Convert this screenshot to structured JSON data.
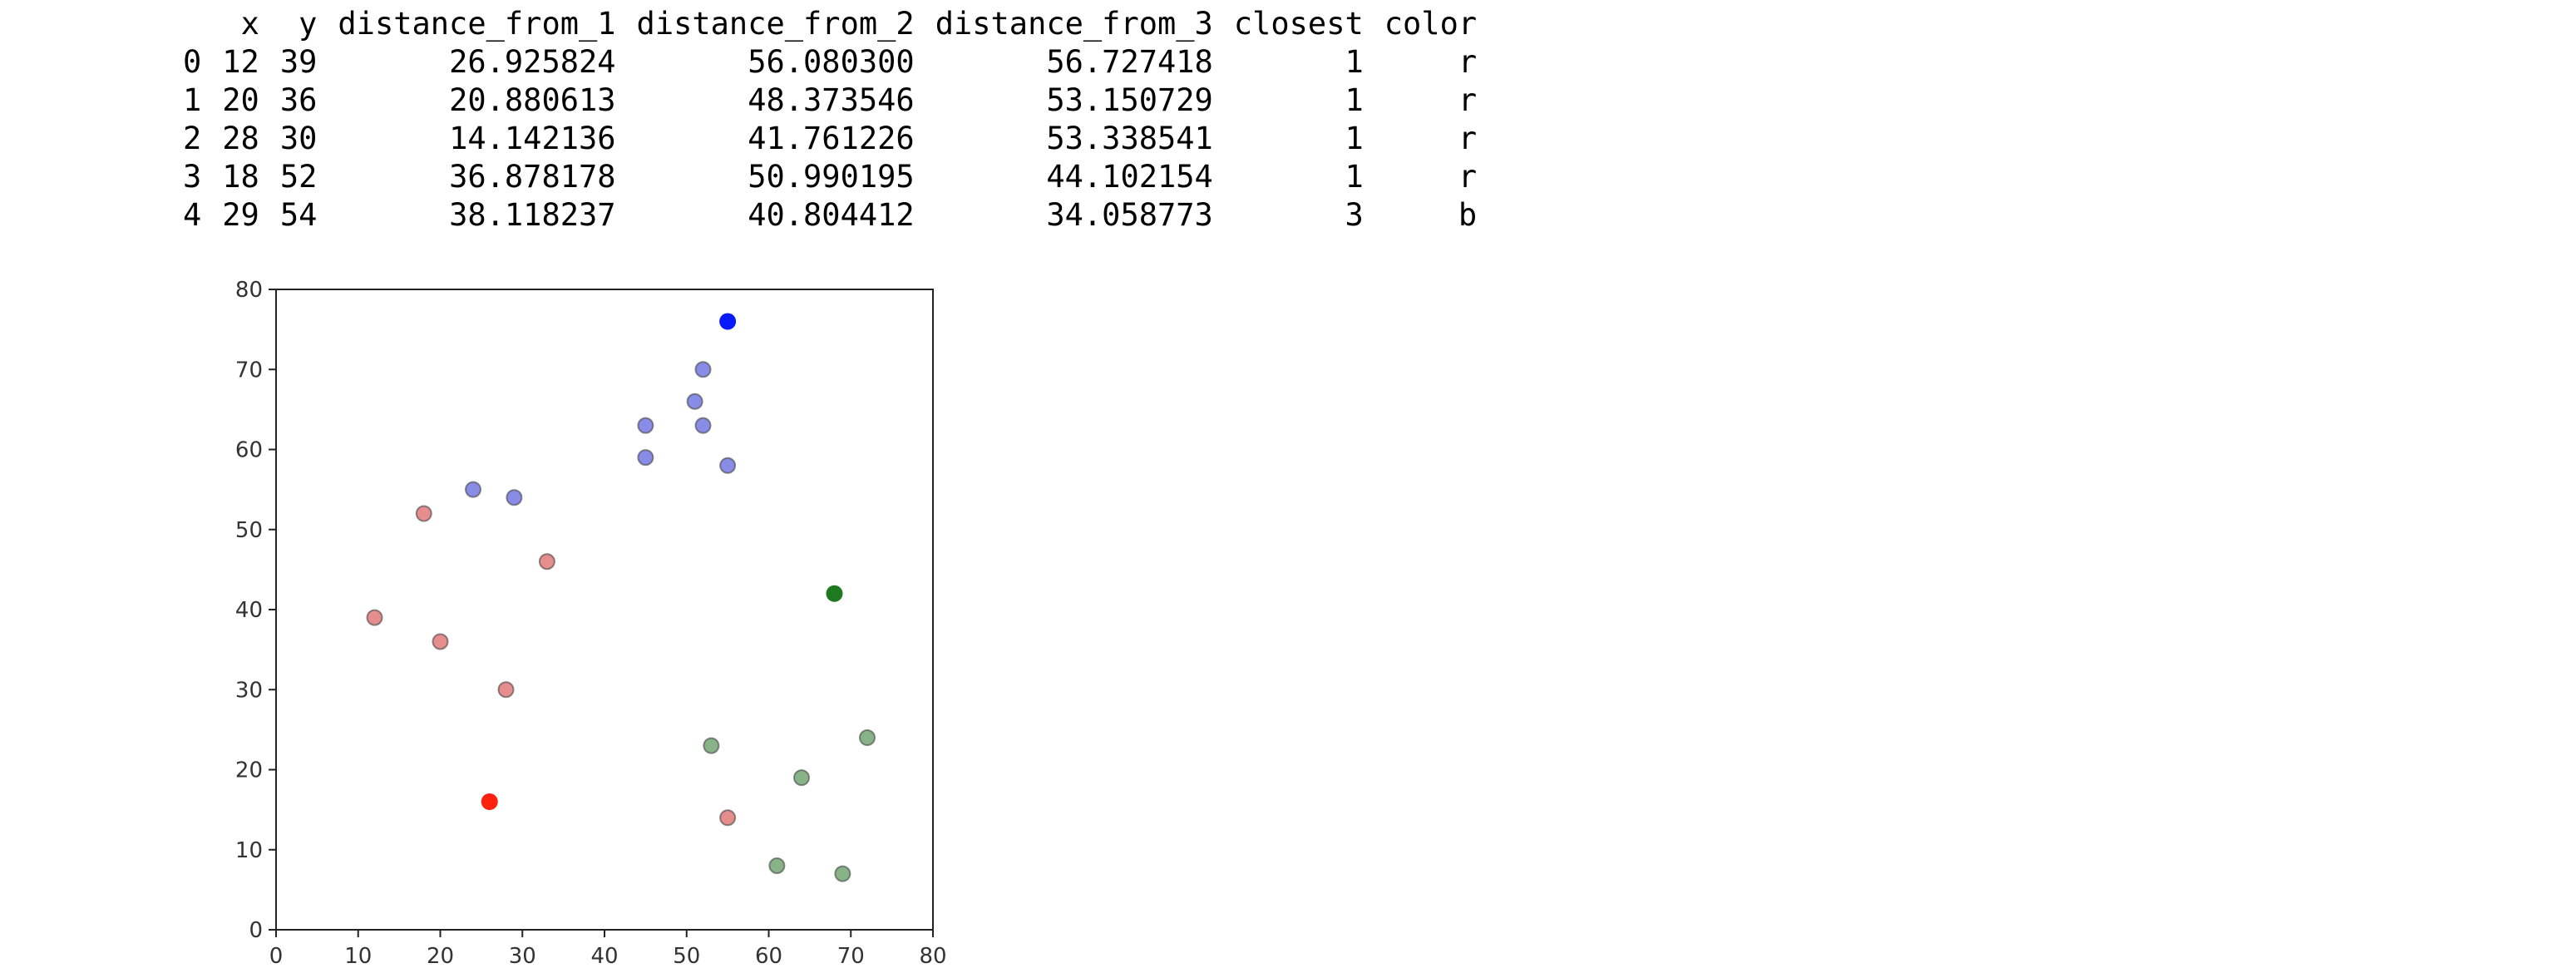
{
  "table": {
    "columns": [
      "",
      "x",
      "y",
      "distance_from_1",
      "distance_from_2",
      "distance_from_3",
      "closest",
      "color"
    ],
    "rows": [
      [
        "0",
        "12",
        "39",
        "26.925824",
        "56.080300",
        "56.727418",
        "1",
        "r"
      ],
      [
        "1",
        "20",
        "36",
        "20.880613",
        "48.373546",
        "53.150729",
        "1",
        "r"
      ],
      [
        "2",
        "28",
        "30",
        "14.142136",
        "41.761226",
        "53.338541",
        "1",
        "r"
      ],
      [
        "3",
        "18",
        "52",
        "36.878178",
        "50.990195",
        "44.102154",
        "1",
        "r"
      ],
      [
        "4",
        "29",
        "54",
        "38.118237",
        "40.804412",
        "34.058773",
        "3",
        "b"
      ]
    ]
  },
  "chart_data": {
    "type": "scatter",
    "title": "",
    "xlabel": "",
    "ylabel": "",
    "xlim": [
      0,
      80
    ],
    "ylim": [
      0,
      80
    ],
    "xticks": [
      0,
      10,
      20,
      30,
      40,
      50,
      60,
      70,
      80
    ],
    "yticks": [
      0,
      10,
      20,
      30,
      40,
      50,
      60,
      70,
      80
    ],
    "grid": false,
    "colors": {
      "r": "#e07070",
      "g": "#6aa06a",
      "b": "#6b6fe0",
      "centroid_r": "#ff2010",
      "centroid_g": "#1f7a1f",
      "centroid_b": "#0a1aff"
    },
    "points": [
      {
        "x": 12,
        "y": 39,
        "color": "r"
      },
      {
        "x": 20,
        "y": 36,
        "color": "r"
      },
      {
        "x": 28,
        "y": 30,
        "color": "r"
      },
      {
        "x": 18,
        "y": 52,
        "color": "r"
      },
      {
        "x": 29,
        "y": 54,
        "color": "b"
      },
      {
        "x": 33,
        "y": 46,
        "color": "r"
      },
      {
        "x": 24,
        "y": 55,
        "color": "b"
      },
      {
        "x": 45,
        "y": 59,
        "color": "b"
      },
      {
        "x": 45,
        "y": 63,
        "color": "b"
      },
      {
        "x": 52,
        "y": 70,
        "color": "b"
      },
      {
        "x": 51,
        "y": 66,
        "color": "b"
      },
      {
        "x": 52,
        "y": 63,
        "color": "b"
      },
      {
        "x": 55,
        "y": 58,
        "color": "b"
      },
      {
        "x": 53,
        "y": 23,
        "color": "g"
      },
      {
        "x": 55,
        "y": 14,
        "color": "r"
      },
      {
        "x": 61,
        "y": 8,
        "color": "g"
      },
      {
        "x": 64,
        "y": 19,
        "color": "g"
      },
      {
        "x": 69,
        "y": 7,
        "color": "g"
      },
      {
        "x": 72,
        "y": 24,
        "color": "g"
      }
    ],
    "centroids": [
      {
        "x": 26,
        "y": 16,
        "color": "centroid_r"
      },
      {
        "x": 68,
        "y": 42,
        "color": "centroid_g"
      },
      {
        "x": 55,
        "y": 76,
        "color": "centroid_b"
      }
    ]
  }
}
